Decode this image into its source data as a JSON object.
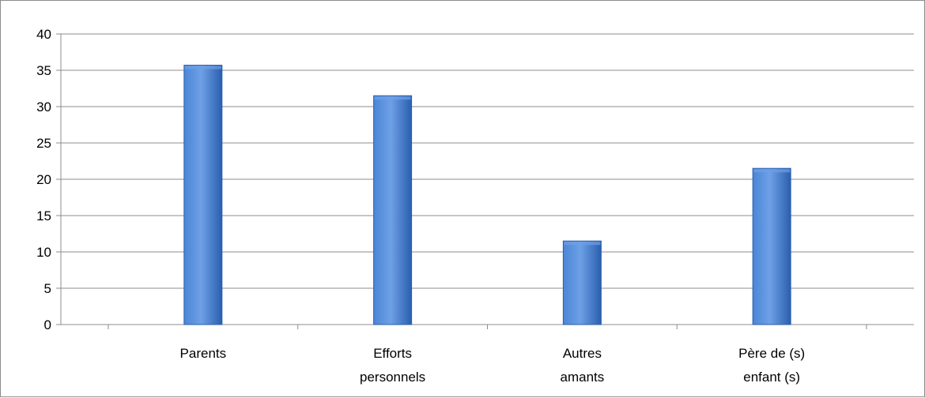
{
  "chart_data": {
    "type": "bar",
    "categories": [
      [
        "Parents"
      ],
      [
        "Efforts",
        "personnels"
      ],
      [
        "Autres",
        "amants"
      ],
      [
        "Père de (s)",
        "enfant (s)"
      ]
    ],
    "values": [
      35.7,
      31.5,
      11.5,
      21.5
    ],
    "title": "",
    "xlabel": "",
    "ylabel": "",
    "ylim": [
      0,
      40
    ],
    "yticks": [
      "0",
      "5",
      "10",
      "15",
      "20",
      "25",
      "30",
      "35",
      "40"
    ],
    "grid": true,
    "legend": "none",
    "colors": {
      "bar_light": "#6ea0e6",
      "bar_mid": "#4a86d6",
      "bar_dark": "#2a5fae",
      "grid": "#8c8c8c",
      "axis": "#8c8c8c"
    }
  }
}
